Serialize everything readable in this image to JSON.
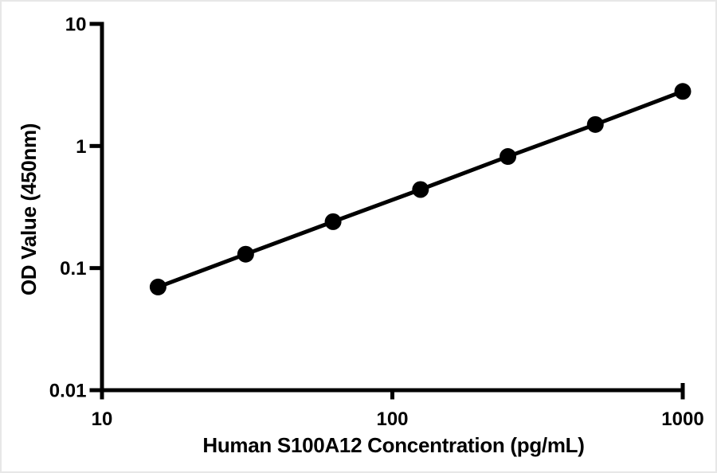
{
  "page": {
    "background": "#ffffff",
    "border_color": "#e7e7e7"
  },
  "chart_data": {
    "type": "scatter",
    "subtype": "line-connected standard curve",
    "title": "",
    "xlabel": "Human S100A12 Concentration (pg/mL)",
    "ylabel": "OD Value (450nm)",
    "x_scale": "log",
    "y_scale": "log",
    "xlim": [
      10,
      1000
    ],
    "ylim": [
      0.01,
      10
    ],
    "x_tick_values": [
      10,
      100,
      1000
    ],
    "x_tick_labels": [
      "10",
      "100",
      "1000"
    ],
    "y_tick_values": [
      10,
      1,
      0.1,
      0.01
    ],
    "y_tick_labels": [
      "10",
      "1",
      "0.1",
      "0.01"
    ],
    "grid": false,
    "legend": null,
    "series": [
      {
        "x": [
          15.6,
          31.25,
          62.5,
          125,
          250,
          500,
          1000
        ],
        "y": [
          0.07,
          0.13,
          0.24,
          0.44,
          0.82,
          1.5,
          2.8
        ],
        "marker": "circle",
        "color": "#000000"
      }
    ],
    "colors": {
      "axis": "#000000",
      "text": "#000000",
      "line": "#000000",
      "marker": "#000000"
    }
  }
}
